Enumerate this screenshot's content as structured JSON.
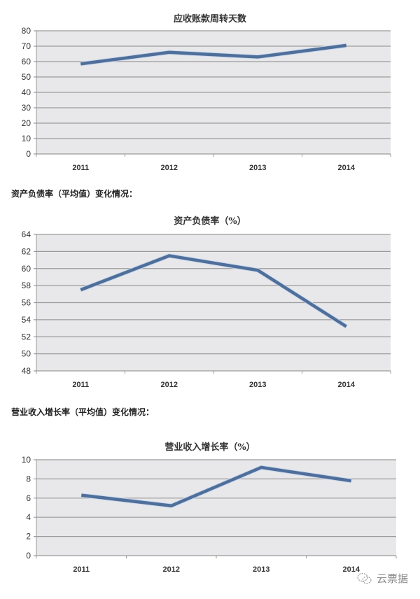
{
  "headings": {
    "debt_ratio_section": "资产负债率（平均值）变化情况：",
    "revenue_growth_section": "营业收入增长率（平均值）变化情况："
  },
  "watermark": {
    "icon": "wechat-icon",
    "label": "云票据"
  },
  "style": {
    "line_color": "#4f6f9a",
    "plot_bg": "#e8e8ea",
    "grid_color": "#9a9a9a"
  },
  "chart_data": [
    {
      "type": "line",
      "title": "应收账款周转天数",
      "xlabel": "",
      "ylabel": "",
      "categories": [
        "2011",
        "2012",
        "2013",
        "2014"
      ],
      "series": [
        {
          "name": "应收账款周转天数",
          "values": [
            58.5,
            66,
            63,
            70.5
          ]
        }
      ],
      "ylim": [
        0,
        80
      ],
      "yticks": [
        0,
        10,
        20,
        30,
        40,
        50,
        60,
        70,
        80
      ],
      "grid": true,
      "legend": "none"
    },
    {
      "type": "line",
      "title": "资产负债率（%）",
      "xlabel": "",
      "ylabel": "",
      "categories": [
        "2011",
        "2012",
        "2013",
        "2014"
      ],
      "series": [
        {
          "name": "资产负债率（%）",
          "values": [
            57.5,
            61.5,
            59.8,
            53.2
          ]
        }
      ],
      "ylim": [
        48,
        64
      ],
      "yticks": [
        48,
        50,
        52,
        54,
        56,
        58,
        60,
        62,
        64
      ],
      "grid": true,
      "legend": "none"
    },
    {
      "type": "line",
      "title": "营业收入增长率（%）",
      "xlabel": "",
      "ylabel": "",
      "categories": [
        "2011",
        "2012",
        "2013",
        "2014"
      ],
      "series": [
        {
          "name": "营业收入增长率（%）",
          "values": [
            6.3,
            5.2,
            9.2,
            7.8
          ]
        }
      ],
      "ylim": [
        0,
        10
      ],
      "yticks": [
        0,
        2,
        4,
        6,
        8,
        10
      ],
      "grid": true,
      "legend": "none"
    }
  ]
}
